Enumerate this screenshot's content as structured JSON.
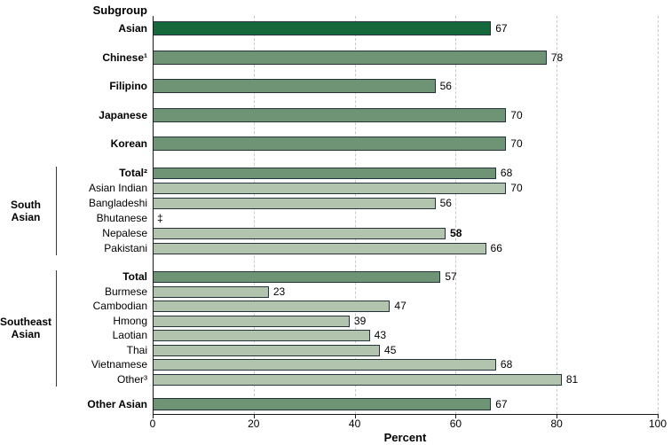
{
  "chart_data": {
    "type": "bar",
    "orientation": "horizontal",
    "column_header": "Subgroup",
    "xlabel": "Percent",
    "xlim": [
      0,
      100
    ],
    "xticks": [
      "0",
      "20",
      "40",
      "60",
      "80",
      "100"
    ],
    "grid": "dashed-vertical",
    "suppressed_marker": "‡",
    "colors": {
      "bar_total": "#15693B",
      "bar_major": "#6F9475",
      "bar_detail": "#B2C4AE",
      "bar_border": "#243239",
      "gridline": "#C9C9C9",
      "axis": "#1A1A1A",
      "bracket": "#3A3A3A",
      "text": "#000000"
    },
    "sections": [
      {
        "name": "overall-and-major-subgroups",
        "rows": [
          {
            "label": "Asian",
            "value": 67,
            "tier": "total",
            "label_bold": true
          },
          {
            "label": "Chinese¹",
            "value": 78,
            "tier": "major",
            "label_bold": true
          },
          {
            "label": "Filipino",
            "value": 56,
            "tier": "major",
            "label_bold": true
          },
          {
            "label": "Japanese",
            "value": 70,
            "tier": "major",
            "label_bold": true
          },
          {
            "label": "Korean",
            "value": 70,
            "tier": "major",
            "label_bold": true
          }
        ]
      },
      {
        "name": "south-asian",
        "group_label": "South\nAsian",
        "rows": [
          {
            "label": "Total²",
            "value": 68,
            "tier": "major",
            "label_bold": true
          },
          {
            "label": "Asian Indian",
            "value": 70,
            "tier": "detail"
          },
          {
            "label": "Bangladeshi",
            "value": 56,
            "tier": "detail"
          },
          {
            "label": "Bhutanese",
            "value": null,
            "tier": "detail",
            "suppressed": true
          },
          {
            "label": "Nepalese",
            "value": 58,
            "tier": "detail",
            "value_bold": true
          },
          {
            "label": "Pakistani",
            "value": 66,
            "tier": "detail"
          }
        ]
      },
      {
        "name": "southeast-asian",
        "group_label": "Southeast\nAsian",
        "rows": [
          {
            "label": "Total",
            "value": 57,
            "tier": "major",
            "label_bold": true
          },
          {
            "label": "Burmese",
            "value": 23,
            "tier": "detail"
          },
          {
            "label": "Cambodian",
            "value": 47,
            "tier": "detail"
          },
          {
            "label": "Hmong",
            "value": 39,
            "tier": "detail"
          },
          {
            "label": "Laotian",
            "value": 43,
            "tier": "detail"
          },
          {
            "label": "Thai",
            "value": 45,
            "tier": "detail"
          },
          {
            "label": "Vietnamese",
            "value": 68,
            "tier": "detail"
          },
          {
            "label": "Other³",
            "value": 81,
            "tier": "detail"
          }
        ]
      },
      {
        "name": "other-asian",
        "rows": [
          {
            "label": "Other Asian",
            "value": 67,
            "tier": "major",
            "label_bold": true
          }
        ]
      }
    ]
  }
}
